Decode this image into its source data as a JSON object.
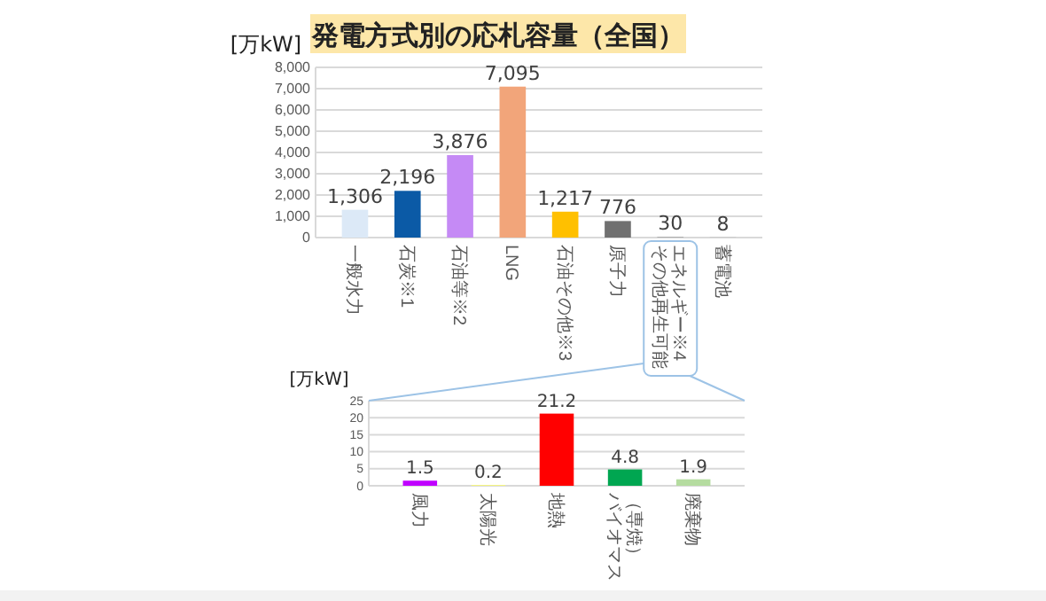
{
  "chart_data": [
    {
      "type": "bar",
      "title": "発電方式別の応札容量（全国）",
      "ylabel": "[万kW]",
      "categories": [
        "一般水力",
        "石炭※1",
        "石油等※2",
        "LNG",
        "石油その他※3",
        "原子力",
        "その他再生可能エネルギー※4",
        "蓄電池"
      ],
      "values": [
        1306,
        2196,
        3876,
        7095,
        1217,
        776,
        30,
        8
      ],
      "value_labels": [
        "1,306",
        "2,196",
        "3,876",
        "7,095",
        "1,217",
        "776",
        "30",
        "8"
      ],
      "colors": [
        "#dce9f7",
        "#0b5aa6",
        "#c58af5",
        "#f2a57a",
        "#ffc000",
        "#707070",
        "#9e9e9e",
        "#9e9e9e"
      ],
      "ylim": [
        0,
        8000
      ],
      "yticks": [
        {
          "value": 0,
          "label": "0"
        },
        {
          "value": 1000,
          "label": "1,000"
        },
        {
          "value": 2000,
          "label": "2,000"
        },
        {
          "value": 3000,
          "label": "3,000"
        },
        {
          "value": 4000,
          "label": "4,000"
        },
        {
          "value": 5000,
          "label": "5,000"
        },
        {
          "value": 6000,
          "label": "6,000"
        },
        {
          "value": 7000,
          "label": "7,000"
        },
        {
          "value": 8000,
          "label": "8,000"
        }
      ],
      "grid": "y"
    },
    {
      "type": "bar",
      "ylabel": "[万kW]",
      "categories": [
        "風力",
        "太陽光",
        "地熱",
        "バイオマス（専焼）",
        "廃棄物"
      ],
      "values": [
        1.5,
        0.2,
        21.2,
        4.8,
        1.9
      ],
      "colors": [
        "#c000ff",
        "#ffff66",
        "#ff0000",
        "#00a651",
        "#b5dca0"
      ],
      "ylim": [
        0,
        25
      ],
      "yticks": [
        0,
        5,
        10,
        15,
        20,
        25
      ],
      "grid": "y",
      "data_labels": true
    }
  ]
}
